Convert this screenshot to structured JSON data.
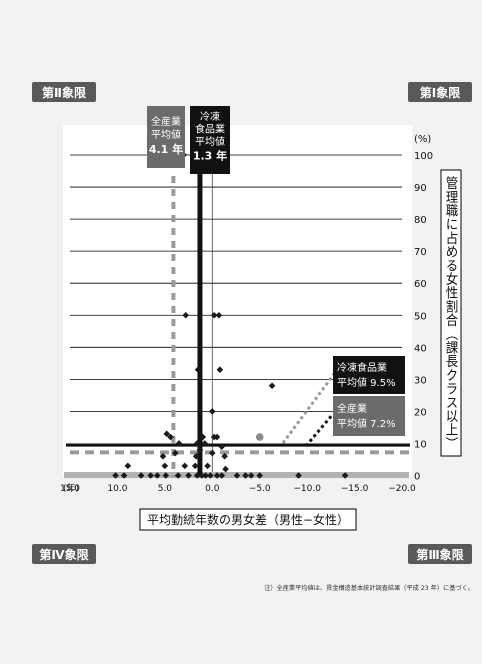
{
  "chart_data": {
    "type": "scatter",
    "quadrants": {
      "q1": "第Ⅰ象限",
      "q2": "第Ⅱ象限",
      "q3": "第Ⅲ象限",
      "q4": "第Ⅳ象限"
    },
    "xlabel": "平均勤続年数の男女差（男性−女性）",
    "ylabel": "管理職に占める女性割合（課長クラス以上）",
    "x_unit": "(年)",
    "y_unit": "(%)",
    "xlim": [
      15.0,
      -20.0
    ],
    "ylim": [
      0,
      100
    ],
    "x_ticks": [
      15.0,
      10.0,
      5.0,
      0.0,
      -5.0,
      -10.0,
      -15.0,
      -20.0
    ],
    "x_tick_labels": [
      "15.0",
      "10.0",
      "5.0",
      "0.0",
      "−5.0",
      "−10.0",
      "−15.0",
      "−20.0"
    ],
    "y_ticks": [
      0,
      10,
      20,
      30,
      40,
      50,
      60,
      70,
      80,
      90,
      100
    ],
    "reference_lines": {
      "all_industry": {
        "label": "全産業\n平均値\n4.1 年",
        "x": 4.1,
        "y": 7.2,
        "y_label": "全産業\n平均値 7.2%",
        "color": "#999999"
      },
      "frozen_food": {
        "label": "冷凍\n食品業\n平均値\n1.3 年",
        "x": 1.3,
        "y": 9.5,
        "y_label": "冷凍食品業\n平均値 9.5%",
        "color": "#111111"
      }
    },
    "series": [
      {
        "name": "冷凍食品業",
        "marker": "diamond",
        "color": "#1a1a1a",
        "points": [
          [
            3.0,
            100
          ],
          [
            2.8,
            50
          ],
          [
            -0.2,
            50
          ],
          [
            -0.7,
            50
          ],
          [
            1.5,
            33
          ],
          [
            -0.8,
            33
          ],
          [
            -6.3,
            28
          ],
          [
            0.0,
            20
          ],
          [
            1.0,
            12
          ],
          [
            -0.2,
            12
          ],
          [
            -0.5,
            12
          ],
          [
            0.8,
            10
          ],
          [
            4.8,
            13
          ],
          [
            4.4,
            12
          ],
          [
            3.5,
            10
          ],
          [
            1.6,
            10
          ],
          [
            -1.0,
            9
          ],
          [
            3.9,
            7
          ],
          [
            1.3,
            8
          ],
          [
            0.0,
            7
          ],
          [
            5.2,
            6
          ],
          [
            1.7,
            6
          ],
          [
            -1.3,
            6
          ],
          [
            8.9,
            3
          ],
          [
            5.0,
            3
          ],
          [
            2.9,
            3
          ],
          [
            1.8,
            3
          ],
          [
            0.5,
            3
          ],
          [
            -1.4,
            2
          ],
          [
            10.2,
            0
          ],
          [
            9.3,
            0
          ],
          [
            7.5,
            0
          ],
          [
            6.5,
            0
          ],
          [
            5.8,
            0
          ],
          [
            4.9,
            0
          ],
          [
            3.6,
            0
          ],
          [
            2.5,
            0
          ],
          [
            1.6,
            0
          ],
          [
            1.1,
            0
          ],
          [
            0.7,
            0
          ],
          [
            0.2,
            0
          ],
          [
            -0.5,
            0
          ],
          [
            -1.0,
            0
          ],
          [
            -2.6,
            0
          ],
          [
            -3.5,
            0
          ],
          [
            -4.1,
            0
          ],
          [
            -5.0,
            0
          ],
          [
            -9.1,
            0
          ],
          [
            -14.0,
            0
          ]
        ]
      },
      {
        "name": "全産業",
        "marker": "circle",
        "color": "#8c8c8c",
        "points": [
          [
            -5.0,
            12
          ]
        ]
      }
    ]
  },
  "note": "注）全産業平均値は、賃金構造基本統計調査結果（平成 23 年）に基づく。"
}
